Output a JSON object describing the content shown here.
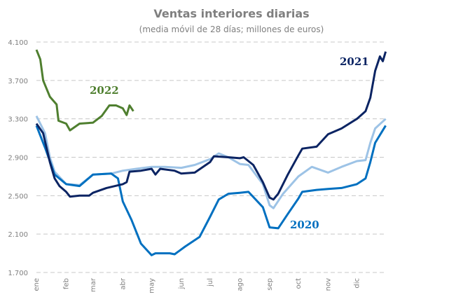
{
  "chart_data": {
    "type": "line",
    "title": "Ventas interiores diarias",
    "subtitle": "(media móvil de 28 días; millones de euros)",
    "xlabel": "",
    "ylabel": "",
    "ylim": [
      1700,
      4100
    ],
    "y_ticks": [
      "4.100",
      "3.700",
      "3.300",
      "2.900",
      "2.500",
      "2.100",
      "1.700"
    ],
    "y_tick_values": [
      4100,
      3700,
      3300,
      2900,
      2500,
      2100,
      1700
    ],
    "x_ticks": [
      "ene",
      "feb",
      "mar",
      "abr",
      "may",
      "jun",
      "jul",
      "ago",
      "sep",
      "oct",
      "nov",
      "dic"
    ],
    "grid": "horizontal dashed",
    "legend": "inline labels",
    "series": [
      {
        "name": "",
        "color": "#9dc3e6",
        "x": [
          "01-01",
          "01-10",
          "01-15",
          "01-20",
          "02-01",
          "02-15",
          "03-01",
          "03-20",
          "04-01",
          "04-15",
          "05-01",
          "05-15",
          "06-01",
          "06-15",
          "07-01",
          "07-10",
          "07-20",
          "08-01",
          "08-10",
          "08-25",
          "09-01",
          "09-05",
          "09-15",
          "10-01",
          "10-15",
          "11-01",
          "11-15",
          "12-01",
          "12-10",
          "12-15",
          "12-20",
          "12-31"
        ],
        "y": [
          3330,
          3150,
          2900,
          2750,
          2620,
          2610,
          2720,
          2730,
          2760,
          2780,
          2800,
          2800,
          2790,
          2820,
          2880,
          2940,
          2900,
          2830,
          2820,
          2620,
          2400,
          2370,
          2520,
          2700,
          2800,
          2740,
          2800,
          2860,
          2870,
          3050,
          3200,
          3300
        ]
      },
      {
        "name": "2020",
        "color": "#0070c0",
        "x": [
          "01-01",
          "01-10",
          "01-20",
          "02-01",
          "02-15",
          "03-01",
          "03-20",
          "03-27",
          "04-01",
          "04-10",
          "04-20",
          "05-01",
          "05-05",
          "05-20",
          "05-25",
          "06-05",
          "06-20",
          "07-01",
          "07-10",
          "07-20",
          "08-01",
          "08-10",
          "08-25",
          "09-01",
          "09-10",
          "09-20",
          "10-01",
          "10-05",
          "10-20",
          "11-01",
          "11-15",
          "12-01",
          "12-10",
          "12-15",
          "12-20",
          "12-31"
        ],
        "y": [
          3230,
          3000,
          2720,
          2620,
          2600,
          2720,
          2730,
          2680,
          2440,
          2250,
          2000,
          1880,
          1900,
          1900,
          1890,
          1970,
          2070,
          2280,
          2460,
          2520,
          2530,
          2540,
          2380,
          2170,
          2160,
          2310,
          2470,
          2540,
          2560,
          2570,
          2580,
          2620,
          2680,
          2850,
          3050,
          3230
        ]
      },
      {
        "name": "2021",
        "color": "#0b2463",
        "x": [
          "01-01",
          "01-08",
          "01-15",
          "01-20",
          "01-25",
          "02-01",
          "02-05",
          "02-15",
          "02-25",
          "03-01",
          "03-15",
          "04-01",
          "04-05",
          "04-08",
          "04-20",
          "05-01",
          "05-05",
          "05-10",
          "05-25",
          "06-01",
          "06-15",
          "07-01",
          "07-05",
          "07-20",
          "08-01",
          "08-05",
          "08-15",
          "08-25",
          "09-01",
          "09-05",
          "09-10",
          "09-20",
          "10-01",
          "10-05",
          "10-20",
          "11-01",
          "11-15",
          "12-01",
          "12-10",
          "12-15",
          "12-20",
          "12-25",
          "12-28",
          "12-31"
        ],
        "y": [
          3250,
          3150,
          2850,
          2680,
          2600,
          2540,
          2490,
          2500,
          2500,
          2530,
          2580,
          2620,
          2640,
          2750,
          2760,
          2780,
          2720,
          2780,
          2760,
          2730,
          2740,
          2850,
          2910,
          2900,
          2890,
          2900,
          2820,
          2640,
          2480,
          2460,
          2520,
          2720,
          2920,
          2990,
          3010,
          3140,
          3200,
          3300,
          3380,
          3520,
          3800,
          3950,
          3900,
          4000
        ]
      },
      {
        "name": "2022",
        "color": "#4f7f2f",
        "x": [
          "01-01",
          "01-05",
          "01-08",
          "01-15",
          "01-22",
          "01-24",
          "02-01",
          "02-05",
          "02-15",
          "03-01",
          "03-10",
          "03-18",
          "03-25",
          "04-01",
          "04-05",
          "04-08",
          "04-12"
        ],
        "y": [
          4020,
          3920,
          3700,
          3530,
          3450,
          3280,
          3250,
          3180,
          3250,
          3260,
          3330,
          3440,
          3440,
          3410,
          3340,
          3440,
          3380
        ]
      }
    ]
  }
}
